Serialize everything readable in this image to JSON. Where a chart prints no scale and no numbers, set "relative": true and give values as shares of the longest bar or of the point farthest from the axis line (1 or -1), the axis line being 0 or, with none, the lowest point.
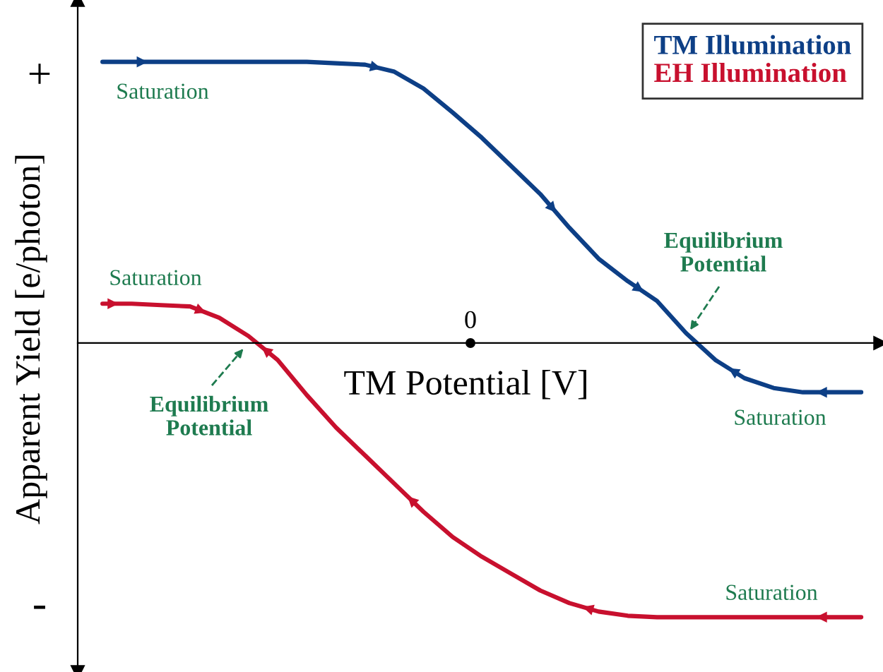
{
  "chart_data": {
    "type": "line",
    "relative": true,
    "xlabel": "TM Potential [V]",
    "ylabel": "Apparent Yield [e/photon]",
    "categories": [
      null,
      null,
      null,
      null,
      null,
      null,
      null,
      null,
      null,
      null,
      null,
      null,
      null,
      null,
      null,
      null,
      null,
      null,
      null,
      null,
      null,
      null,
      null,
      null,
      null,
      null,
      null
    ],
    "series": [
      {
        "name": "TM Illumination",
        "color": "#0d3f86",
        "values": [
          1.0,
          1.0,
          1.0,
          1.0,
          1.0,
          1.0,
          1.0,
          1.0,
          0.995,
          0.99,
          0.965,
          0.905,
          0.82,
          0.73,
          0.63,
          0.53,
          0.41,
          0.3,
          0.22,
          0.15,
          0.035,
          -0.06,
          -0.125,
          -0.16,
          -0.175,
          -0.175,
          -0.175
        ]
      },
      {
        "name": "EH Illumination",
        "color": "#c8102e",
        "values": [
          0.14,
          0.14,
          0.135,
          0.13,
          0.09,
          0.025,
          -0.06,
          -0.185,
          -0.3,
          -0.4,
          -0.5,
          -0.6,
          -0.69,
          -0.76,
          -0.82,
          -0.88,
          -0.925,
          -0.955,
          -0.97,
          -0.975,
          -0.975,
          -0.975,
          -0.975,
          -0.975,
          -0.975,
          -0.975,
          -0.975
        ]
      }
    ],
    "legend": "top right",
    "marker": "none",
    "line_style": "solid",
    "annotations": [
      "+",
      "-",
      "Saturation",
      "Saturation",
      "Equilibrium\nPotential",
      "Equilibrium\nPotential",
      "Saturation",
      "Saturation",
      "0"
    ]
  }
}
